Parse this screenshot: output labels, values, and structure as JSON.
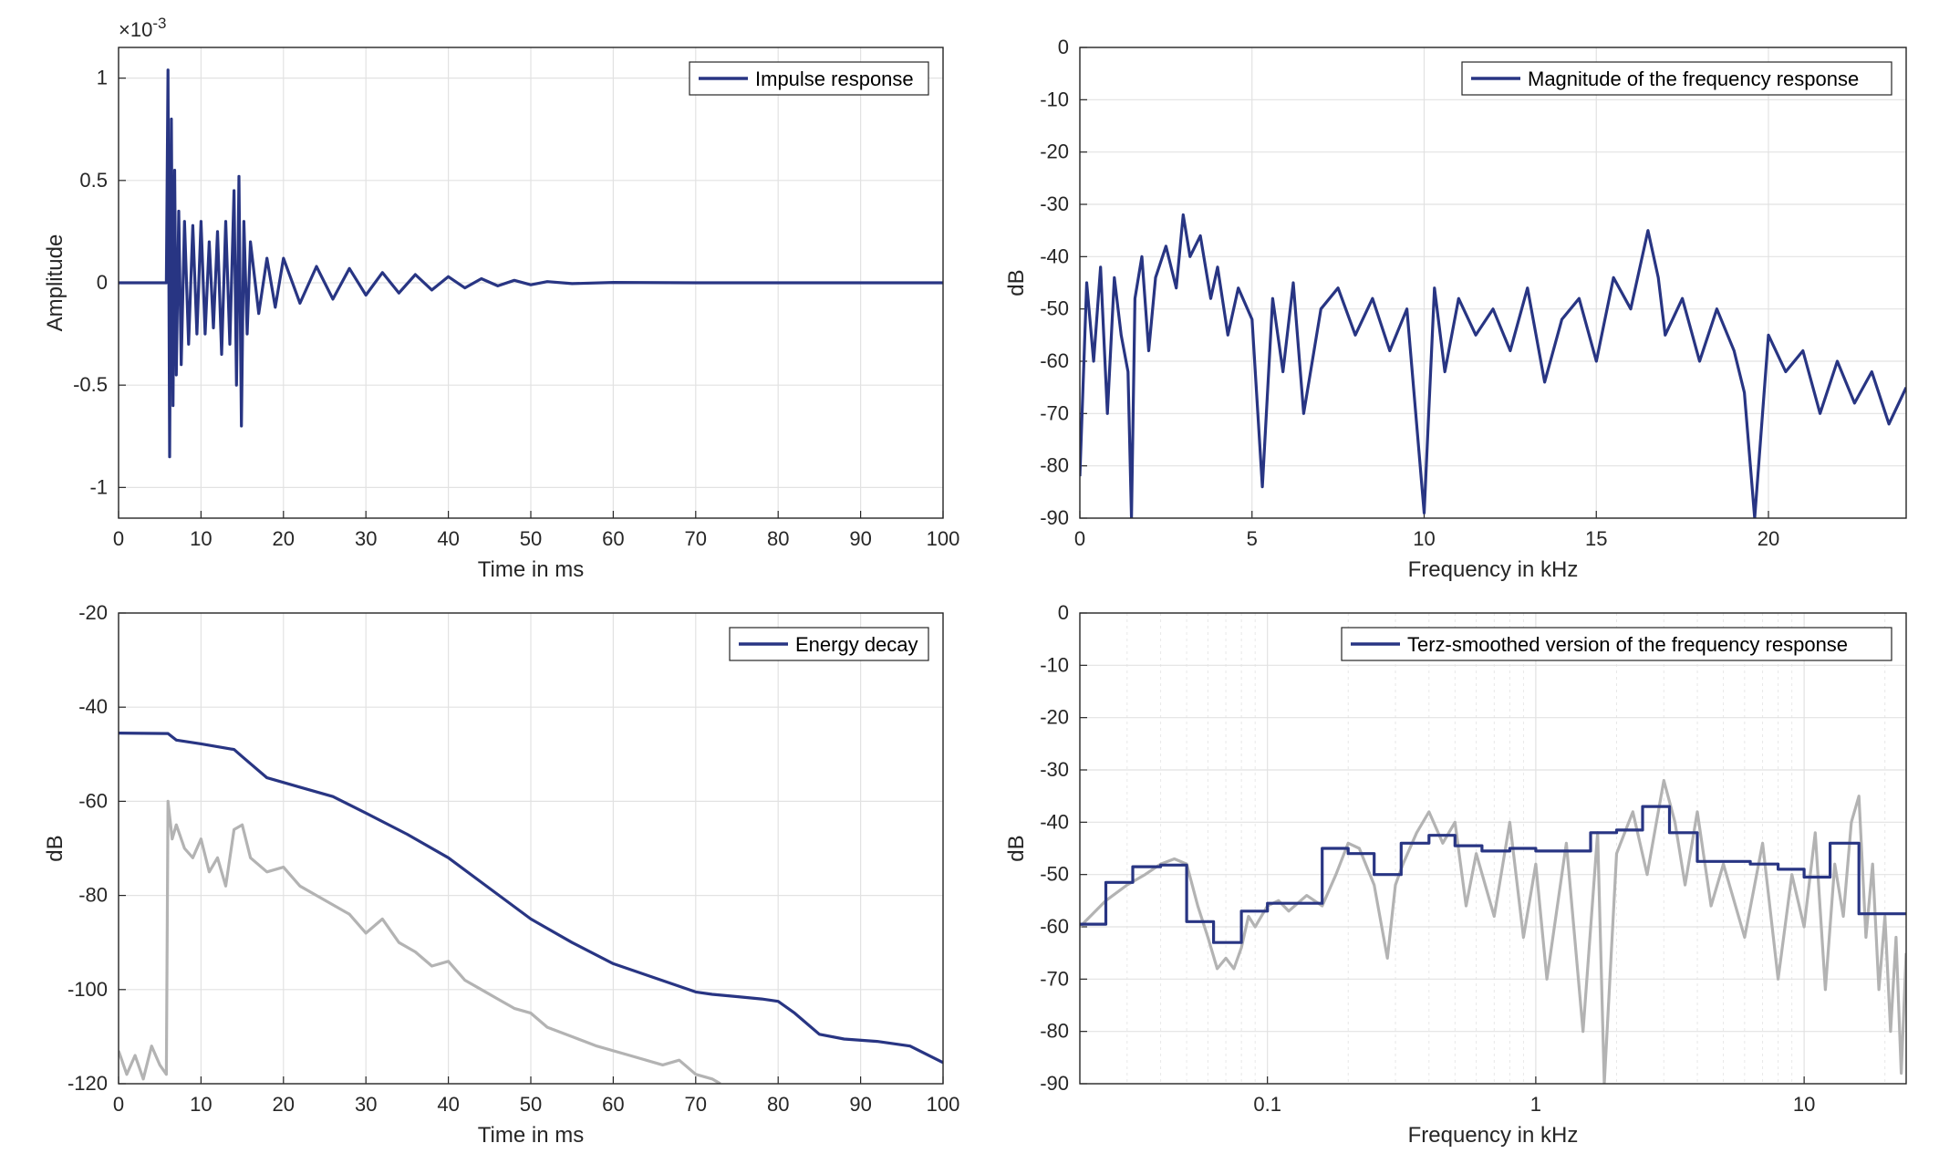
{
  "colors": {
    "primary": "#283583",
    "secondary": "#b3b3b3",
    "axis": "#262626",
    "grid": "#e2e2e2"
  },
  "chart_data": [
    {
      "id": "impulse",
      "type": "line",
      "xlabel": "Time in ms",
      "ylabel": "Amplitude",
      "exponent_label": "×10",
      "exponent_power": "-3",
      "xlim": [
        0,
        100
      ],
      "ylim": [
        -1.15,
        1.15
      ],
      "xticks": [
        0,
        10,
        20,
        30,
        40,
        50,
        60,
        70,
        80,
        90,
        100
      ],
      "yticks": [
        -1,
        -0.5,
        0,
        0.5,
        1
      ],
      "grid": true,
      "legend_position": "top-right",
      "series": [
        {
          "name": "Impulse response",
          "x": [
            0,
            5.8,
            6.0,
            6.2,
            6.4,
            6.6,
            6.8,
            7.0,
            7.3,
            7.6,
            8.0,
            8.5,
            9.0,
            9.5,
            10.0,
            10.5,
            11.0,
            11.5,
            12.0,
            12.5,
            13.0,
            13.5,
            14.0,
            14.3,
            14.6,
            14.9,
            15.2,
            15.6,
            16.0,
            17.0,
            18.0,
            19.0,
            20.0,
            22.0,
            24.0,
            26.0,
            28.0,
            30.0,
            32.0,
            34.0,
            36.0,
            38.0,
            40.0,
            42.0,
            44.0,
            46.0,
            48.0,
            50.0,
            52.0,
            55.0,
            60.0,
            70.0,
            80.0,
            90.0,
            100.0
          ],
          "y": [
            0,
            0,
            1.04,
            -0.85,
            0.8,
            -0.6,
            0.55,
            -0.45,
            0.35,
            -0.4,
            0.3,
            -0.3,
            0.28,
            -0.25,
            0.3,
            -0.25,
            0.2,
            -0.22,
            0.25,
            -0.35,
            0.3,
            -0.3,
            0.45,
            -0.5,
            0.52,
            -0.7,
            0.3,
            -0.25,
            0.2,
            -0.15,
            0.12,
            -0.12,
            0.12,
            -0.1,
            0.08,
            -0.08,
            0.07,
            -0.06,
            0.05,
            -0.05,
            0.04,
            -0.035,
            0.03,
            -0.025,
            0.02,
            -0.015,
            0.012,
            -0.01,
            0.006,
            -0.004,
            0.002,
            0.0,
            0.0,
            0.0,
            0.0
          ]
        }
      ]
    },
    {
      "id": "magnitude",
      "type": "line",
      "xlabel": "Frequency in kHz",
      "ylabel": "dB",
      "xlim": [
        0,
        24
      ],
      "ylim": [
        -90,
        0
      ],
      "xticks": [
        0,
        5,
        10,
        15,
        20
      ],
      "yticks": [
        0,
        -10,
        -20,
        -30,
        -40,
        -50,
        -60,
        -70,
        -80,
        -90
      ],
      "grid": true,
      "legend_position": "top-right",
      "series": [
        {
          "name": "Magnitude of the frequency response",
          "x": [
            0,
            0.2,
            0.4,
            0.6,
            0.8,
            1.0,
            1.2,
            1.4,
            1.5,
            1.6,
            1.8,
            2.0,
            2.2,
            2.5,
            2.8,
            3.0,
            3.2,
            3.5,
            3.8,
            4.0,
            4.3,
            4.6,
            5.0,
            5.3,
            5.6,
            5.9,
            6.2,
            6.5,
            7.0,
            7.5,
            8.0,
            8.5,
            9.0,
            9.5,
            10.0,
            10.3,
            10.6,
            11.0,
            11.5,
            12.0,
            12.5,
            13.0,
            13.5,
            14.0,
            14.5,
            15.0,
            15.5,
            16.0,
            16.5,
            16.8,
            17.0,
            17.5,
            18.0,
            18.5,
            19.0,
            19.3,
            19.6,
            20.0,
            20.5,
            21.0,
            21.5,
            22.0,
            22.5,
            23.0,
            23.5,
            24.0
          ],
          "y": [
            -82,
            -45,
            -60,
            -42,
            -70,
            -44,
            -55,
            -62,
            -90,
            -48,
            -40,
            -58,
            -44,
            -38,
            -46,
            -32,
            -40,
            -36,
            -48,
            -42,
            -55,
            -46,
            -52,
            -84,
            -48,
            -62,
            -45,
            -70,
            -50,
            -46,
            -55,
            -48,
            -58,
            -50,
            -89,
            -46,
            -62,
            -48,
            -55,
            -50,
            -58,
            -46,
            -64,
            -52,
            -48,
            -60,
            -44,
            -50,
            -35,
            -44,
            -55,
            -48,
            -60,
            -50,
            -58,
            -66,
            -90,
            -55,
            -62,
            -58,
            -70,
            -60,
            -68,
            -62,
            -72,
            -65
          ]
        }
      ]
    },
    {
      "id": "energy",
      "type": "line",
      "xlabel": "Time in ms",
      "ylabel": "dB",
      "xlim": [
        0,
        100
      ],
      "ylim": [
        -120,
        -20
      ],
      "xticks": [
        0,
        10,
        20,
        30,
        40,
        50,
        60,
        70,
        80,
        90,
        100
      ],
      "yticks": [
        -20,
        -40,
        -60,
        -80,
        -100,
        -120
      ],
      "grid": true,
      "legend_position": "top-right",
      "series": [
        {
          "name": "Energy decay",
          "x": [
            0,
            6,
            7,
            10,
            14,
            15,
            18,
            22,
            26,
            30,
            35,
            40,
            45,
            50,
            55,
            60,
            65,
            70,
            72,
            75,
            78,
            80,
            82,
            85,
            88,
            92,
            96,
            100
          ],
          "y": [
            -45.5,
            -45.6,
            -47,
            -47.8,
            -49,
            -50.5,
            -55,
            -57,
            -59,
            -62.5,
            -67,
            -72,
            -78.5,
            -85,
            -90,
            -94.5,
            -97.5,
            -100.5,
            -101,
            -101.5,
            -102,
            -102.5,
            -105,
            -109.5,
            -110.5,
            -111,
            -112,
            -115.5
          ]
        },
        {
          "name": "",
          "x": [
            0,
            1,
            2,
            3,
            4,
            5,
            5.8,
            6.0,
            6.5,
            7,
            8,
            9,
            10,
            11,
            12,
            13,
            14,
            15,
            16,
            18,
            20,
            22,
            24,
            26,
            28,
            30,
            32,
            34,
            36,
            38,
            40,
            42,
            44,
            46,
            48,
            50,
            52,
            55,
            58,
            62,
            66,
            68,
            70,
            72,
            73
          ],
          "y": [
            -113,
            -118,
            -114,
            -119,
            -112,
            -116,
            -118,
            -60,
            -68,
            -65,
            -70,
            -72,
            -68,
            -75,
            -72,
            -78,
            -66,
            -65,
            -72,
            -75,
            -74,
            -78,
            -80,
            -82,
            -84,
            -88,
            -85,
            -90,
            -92,
            -95,
            -94,
            -98,
            -100,
            -102,
            -104,
            -105,
            -108,
            -110,
            -112,
            -114,
            -116,
            -115,
            -118,
            -119,
            -120
          ]
        }
      ]
    },
    {
      "id": "terz",
      "type": "line",
      "xlabel": "Frequency in kHz",
      "ylabel": "dB",
      "xscale": "log",
      "xlim": [
        0.02,
        24
      ],
      "ylim": [
        -90,
        0
      ],
      "xticks": [
        0.1,
        1,
        10
      ],
      "xticklabels": [
        "0.1",
        "1",
        "10"
      ],
      "yticks": [
        0,
        -10,
        -20,
        -30,
        -40,
        -50,
        -60,
        -70,
        -80,
        -90
      ],
      "grid": true,
      "legend_position": "top-right",
      "series": [
        {
          "name": "Terz-smoothed version of the frequency response",
          "x": [
            0.02,
            0.025,
            0.025,
            0.0315,
            0.0315,
            0.04,
            0.04,
            0.05,
            0.05,
            0.063,
            0.063,
            0.08,
            0.08,
            0.1,
            0.1,
            0.125,
            0.125,
            0.16,
            0.16,
            0.2,
            0.2,
            0.25,
            0.25,
            0.315,
            0.315,
            0.4,
            0.4,
            0.5,
            0.5,
            0.63,
            0.63,
            0.8,
            0.8,
            1.0,
            1.0,
            1.25,
            1.25,
            1.6,
            1.6,
            2.0,
            2.0,
            2.5,
            2.5,
            3.15,
            3.15,
            4.0,
            4.0,
            5.0,
            5.0,
            6.3,
            6.3,
            8.0,
            8.0,
            10.0,
            10.0,
            12.5,
            12.5,
            16.0,
            16.0,
            20.0,
            20.0,
            24.0
          ],
          "y": [
            -59.5,
            -59.5,
            -51.5,
            -51.5,
            -48.5,
            -48.5,
            -48.2,
            -48.2,
            -59,
            -59,
            -63,
            -63,
            -57,
            -57,
            -55.5,
            -55.5,
            -55.5,
            -55.5,
            -45,
            -45,
            -46,
            -46,
            -50,
            -50,
            -44,
            -44,
            -42.5,
            -42.5,
            -44.5,
            -44.5,
            -45.5,
            -45.5,
            -45,
            -45,
            -45.5,
            -45.5,
            -45.5,
            -45.5,
            -42,
            -42,
            -41.5,
            -41.5,
            -37,
            -37,
            -42,
            -42,
            -47.5,
            -47.5,
            -47.5,
            -47.5,
            -48,
            -48,
            -49,
            -49,
            -50.5,
            -50.5,
            -44,
            -44,
            -57.5,
            -57.5,
            -57.5,
            -57.5
          ]
        },
        {
          "name": "",
          "x": [
            0.02,
            0.025,
            0.03,
            0.035,
            0.04,
            0.045,
            0.05,
            0.055,
            0.06,
            0.065,
            0.07,
            0.075,
            0.08,
            0.085,
            0.09,
            0.1,
            0.11,
            0.12,
            0.14,
            0.16,
            0.18,
            0.2,
            0.22,
            0.25,
            0.28,
            0.3,
            0.32,
            0.36,
            0.4,
            0.45,
            0.5,
            0.55,
            0.6,
            0.7,
            0.8,
            0.9,
            1.0,
            1.1,
            1.3,
            1.5,
            1.7,
            1.8,
            2.0,
            2.3,
            2.6,
            3.0,
            3.3,
            3.6,
            4.0,
            4.5,
            5.0,
            6.0,
            7.0,
            8.0,
            9.0,
            10.0,
            11.0,
            12.0,
            13.0,
            14.0,
            15.0,
            16.0,
            17.0,
            18.0,
            19.0,
            20.0,
            21.0,
            22.0,
            23.0,
            24.0
          ],
          "y": [
            -60,
            -55,
            -52,
            -50,
            -48,
            -47,
            -48,
            -56,
            -62,
            -68,
            -66,
            -68,
            -64,
            -58,
            -60,
            -56,
            -55,
            -57,
            -54,
            -56,
            -50,
            -44,
            -45,
            -52,
            -66,
            -52,
            -48,
            -42,
            -38,
            -44,
            -40,
            -56,
            -46,
            -58,
            -40,
            -62,
            -48,
            -70,
            -44,
            -80,
            -42,
            -90,
            -46,
            -38,
            -50,
            -32,
            -40,
            -52,
            -38,
            -56,
            -48,
            -62,
            -44,
            -70,
            -50,
            -60,
            -42,
            -72,
            -48,
            -58,
            -40,
            -35,
            -62,
            -48,
            -72,
            -58,
            -80,
            -62,
            -88,
            -65
          ]
        }
      ]
    }
  ]
}
